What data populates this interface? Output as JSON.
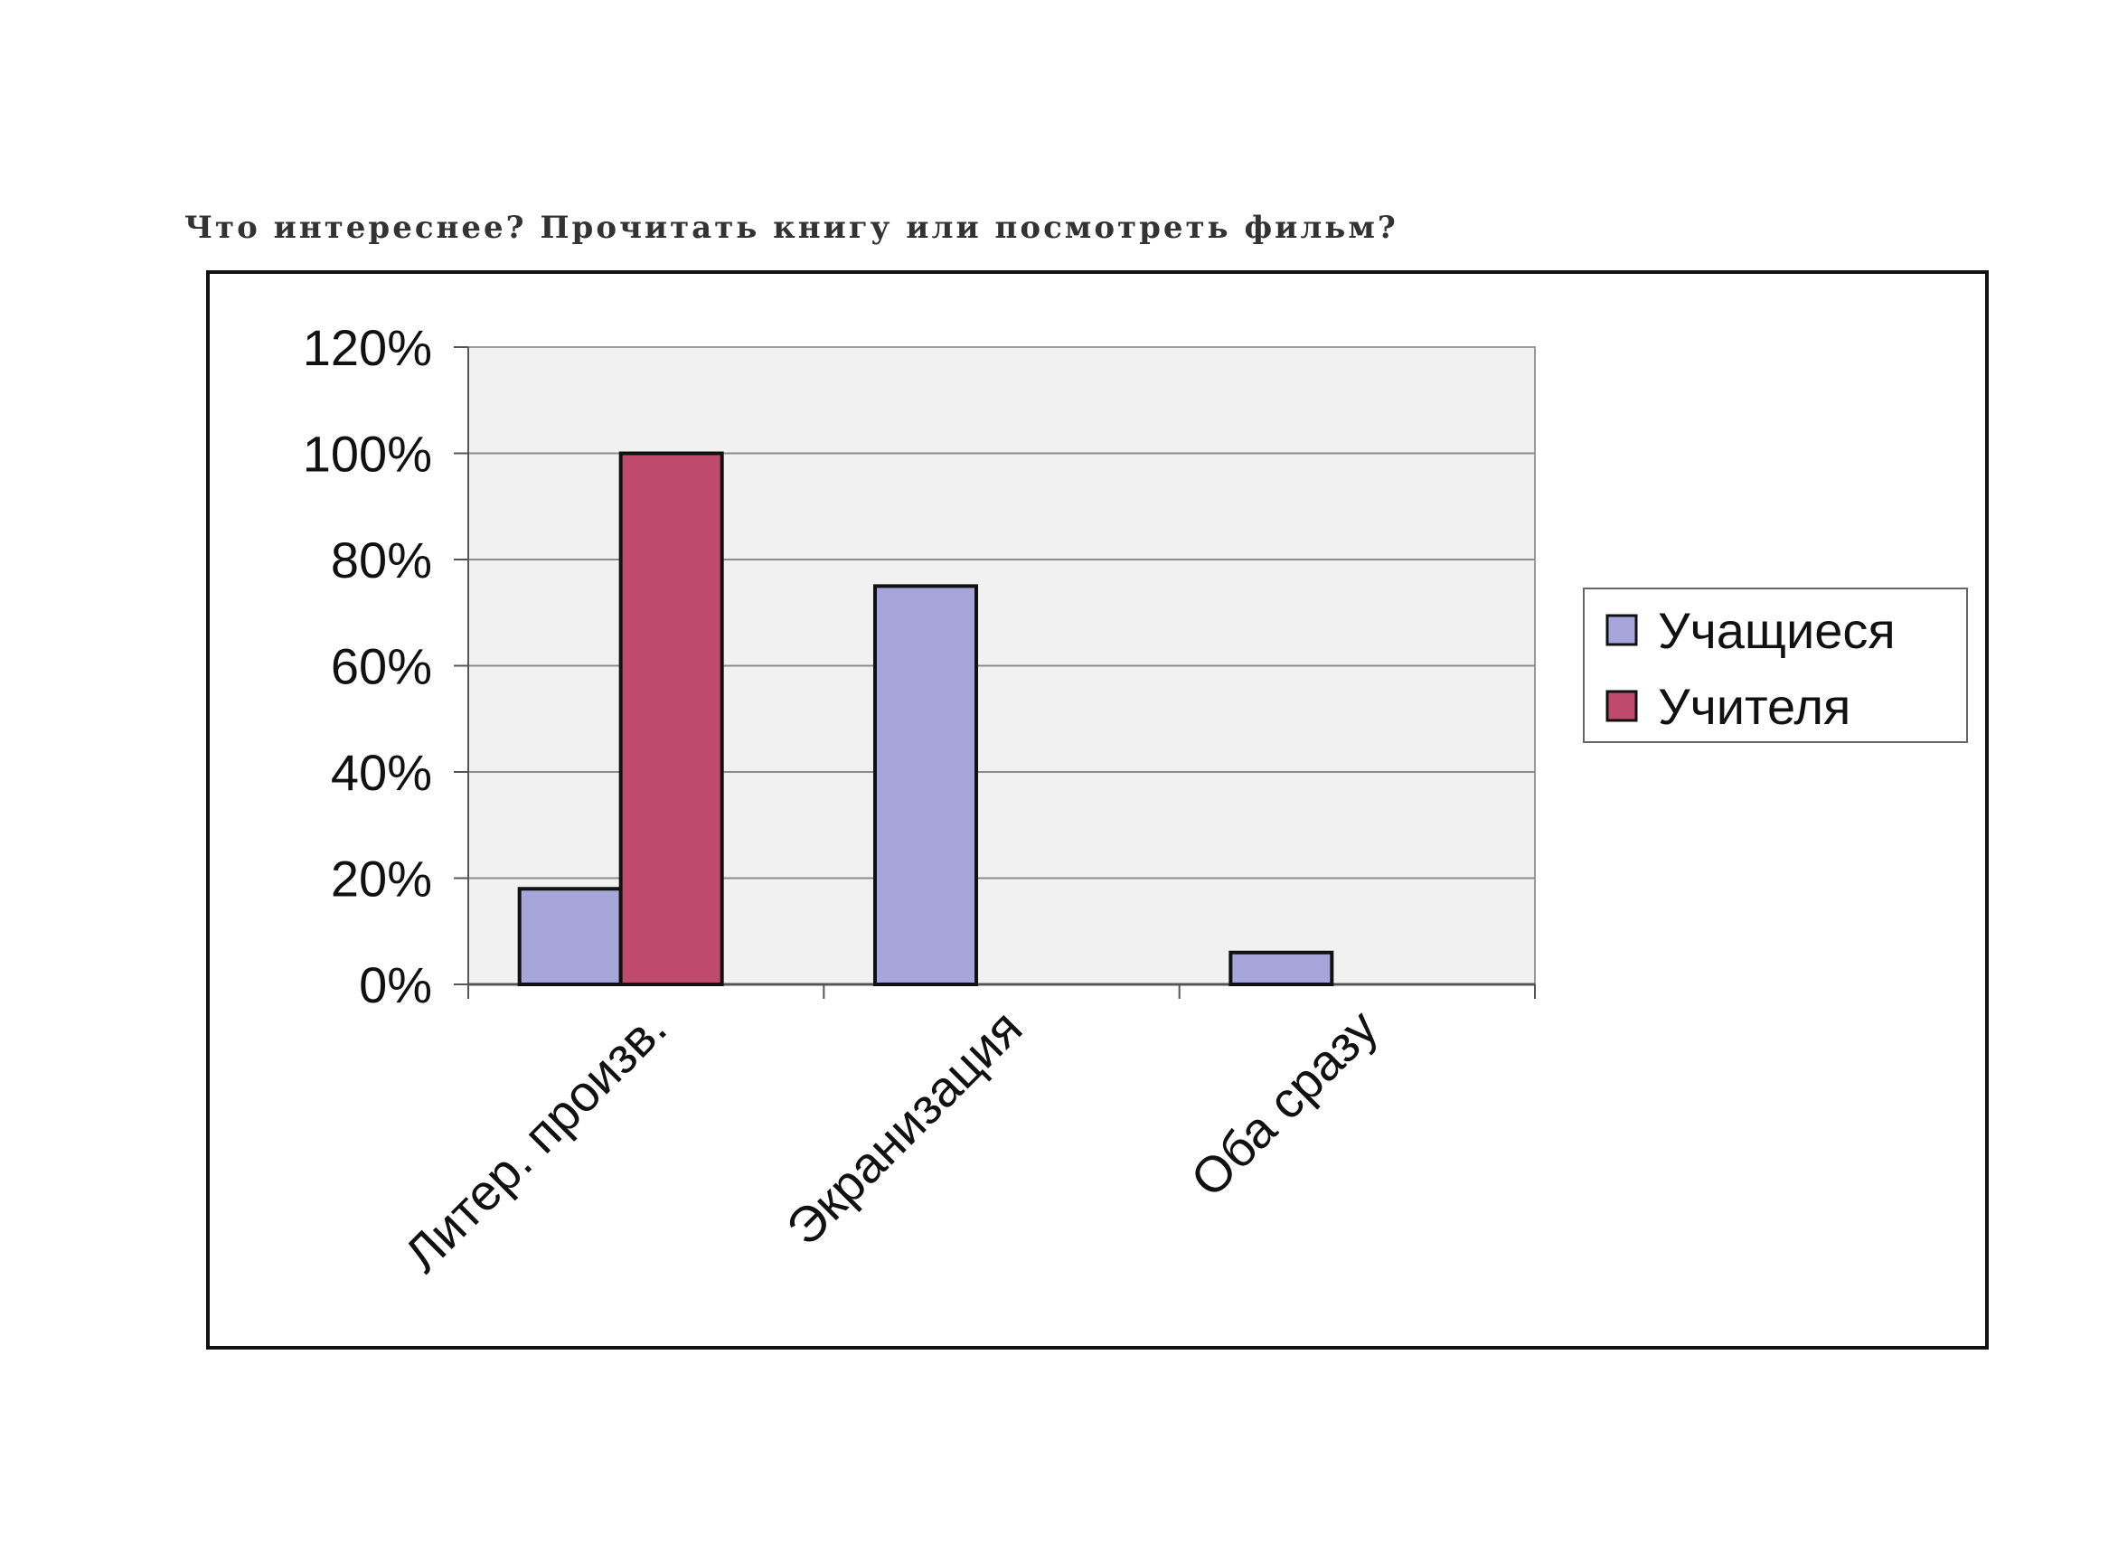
{
  "chart_data": {
    "type": "bar",
    "title": "Что интереснее? Прочитать книгу или посмотреть фильм?",
    "categories": [
      "Литер. произв.",
      "Экранизация",
      "Оба сразу"
    ],
    "series": [
      {
        "name": "Учащиеся",
        "values": [
          18,
          75,
          6
        ],
        "color": "#A7A6DB"
      },
      {
        "name": "Учителя",
        "values": [
          100,
          0,
          0
        ],
        "color": "#C04A6E"
      }
    ],
    "yticks": [
      "0%",
      "20%",
      "40%",
      "60%",
      "80%",
      "100%",
      "120%"
    ],
    "ylim": [
      0,
      120
    ],
    "grid": true,
    "legend_position": "right",
    "plot_background": "#F1F1F1"
  }
}
